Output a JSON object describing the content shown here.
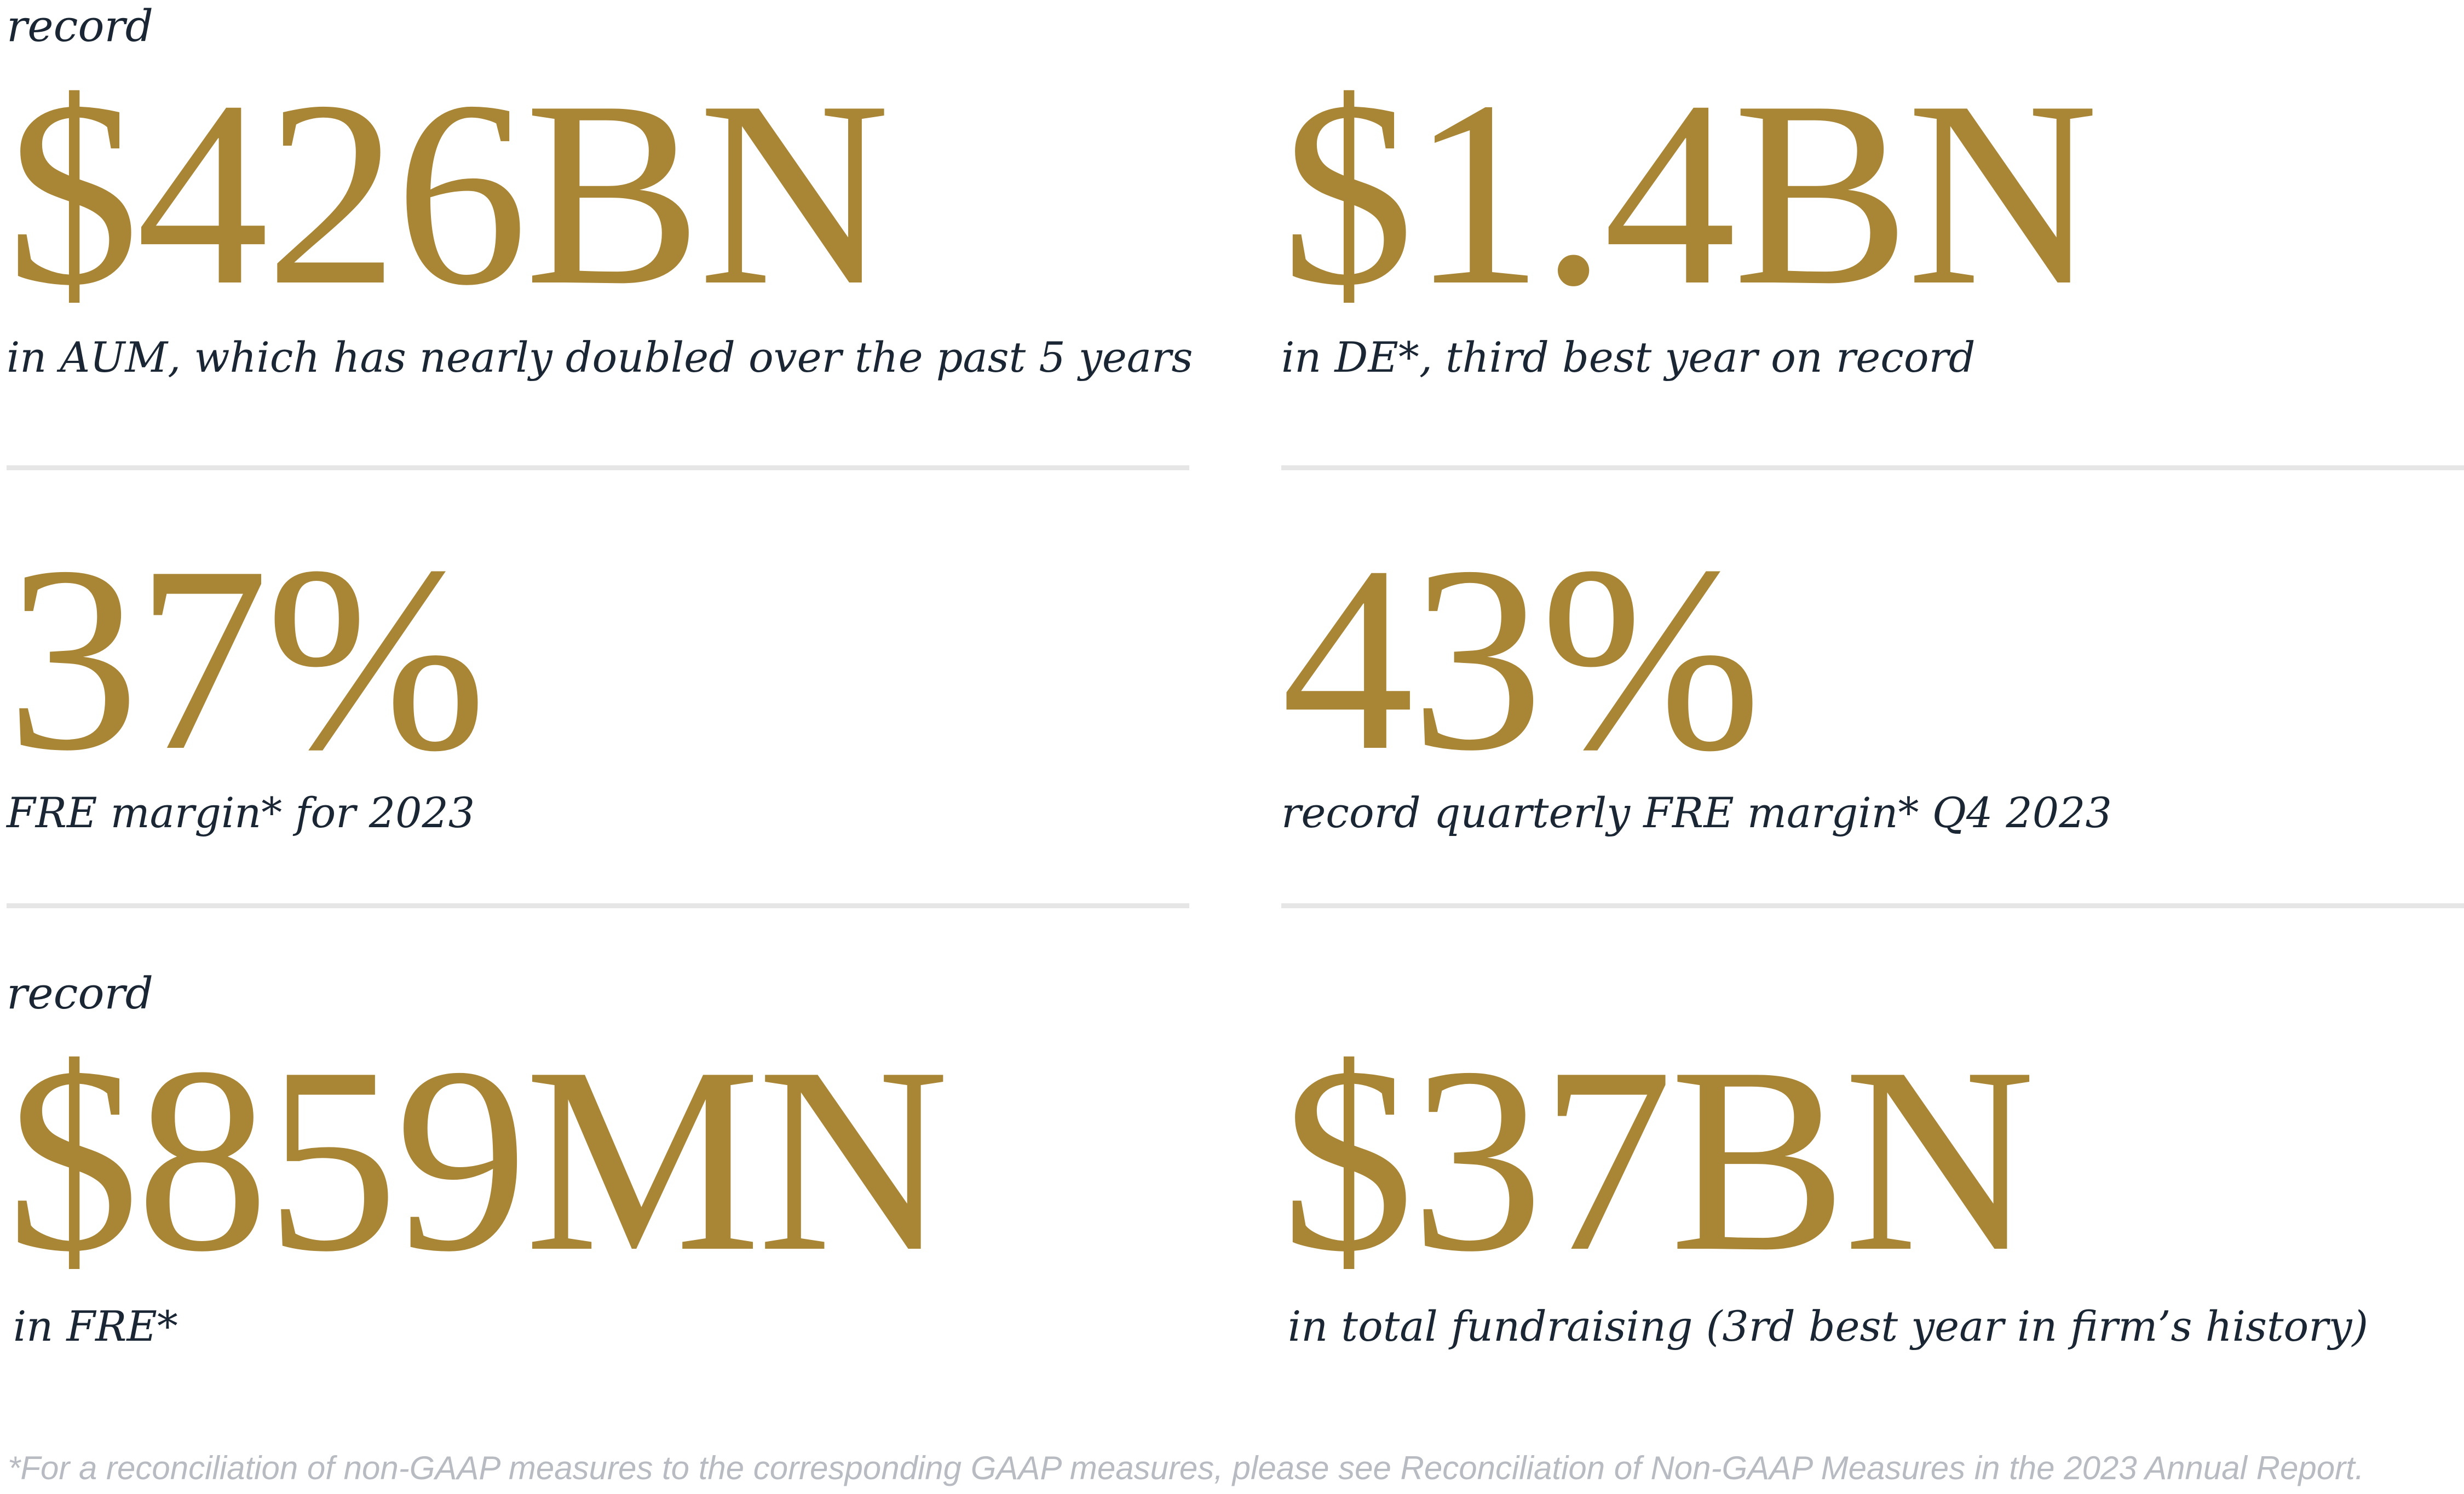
{
  "stats": [
    {
      "prefix": "record",
      "value": "$426BN",
      "caption": "in AUM, which has nearly doubled over the past 5 years"
    },
    {
      "prefix": "",
      "value": "$1.4BN",
      "caption": "in DE*, third best year on record"
    },
    {
      "prefix": "",
      "value": "37%",
      "caption": "FRE margin* for 2023"
    },
    {
      "prefix": "",
      "value": "43%",
      "caption": "record quarterly FRE margin* Q4 2023"
    },
    {
      "prefix": "record",
      "value": "$859MN",
      "caption": "in FRE*"
    },
    {
      "prefix": "",
      "value": "$37BN",
      "caption": "in total fundraising (3rd best year in firm’s history)"
    }
  ],
  "footnote": "*For a reconciliation of non-GAAP measures to the corresponding GAAP measures, please see Reconciliation of Non-GAAP Measures in the 2023 Annual Report.",
  "colors": {
    "gold": "#a98635",
    "navy": "#1a2634",
    "divider": "#e6e6e6",
    "footnote": "#b8bcc2"
  }
}
